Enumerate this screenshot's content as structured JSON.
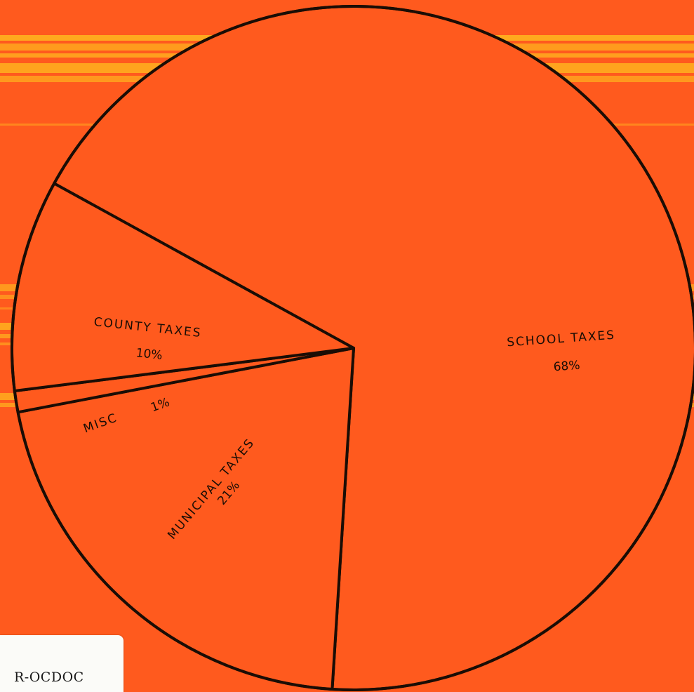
{
  "colors": {
    "background": "#ff5a1e",
    "stripe": "#ffb21e",
    "ink": "#1a0d05"
  },
  "chart_data": {
    "type": "pie",
    "title": "",
    "slices": [
      {
        "label": "SCHOOL TAXES",
        "value": 68,
        "value_label": "68%"
      },
      {
        "label": "MUNICIPAL TAXES",
        "value": 21,
        "value_label": "21%"
      },
      {
        "label": "MISC",
        "value": 1,
        "value_label": "1%"
      },
      {
        "label": "COUNTY TAXES",
        "value": 10,
        "value_label": "10%"
      }
    ]
  },
  "sticker": {
    "text": "R-OCDOC"
  }
}
